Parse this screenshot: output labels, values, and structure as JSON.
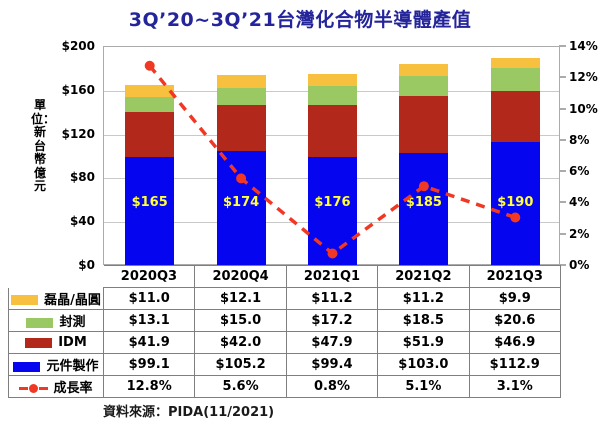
{
  "title": "3Q’20~3Q’21台灣化合物半導體產值",
  "unit_label": "單位：新台幣億元",
  "source": "資料來源：PIDA(11/2021)",
  "chart_data": {
    "type": "bar",
    "subtype": "stacked-bars-with-growth-line",
    "categories": [
      "2020Q3",
      "2020Q4",
      "2021Q1",
      "2021Q2",
      "2021Q3"
    ],
    "series": [
      {
        "name": "磊晶/晶圓",
        "color": "#F7C13F",
        "values": [
          11.0,
          12.1,
          11.2,
          11.2,
          9.9
        ],
        "cells": [
          "$11.0",
          "$12.1",
          "$11.2",
          "$11.2",
          "$9.9"
        ]
      },
      {
        "name": "封測",
        "color": "#9AC862",
        "values": [
          13.1,
          15.0,
          17.2,
          18.5,
          20.6
        ],
        "cells": [
          "$13.1",
          "$15.0",
          "$17.2",
          "$18.5",
          "$20.6"
        ]
      },
      {
        "name": "IDM",
        "color": "#B2291B",
        "values": [
          41.9,
          42.0,
          47.9,
          51.9,
          46.9
        ],
        "cells": [
          "$41.9",
          "$42.0",
          "$47.9",
          "$51.9",
          "$46.9"
        ]
      },
      {
        "name": "元件製作",
        "color": "#0505F0",
        "values": [
          99.1,
          105.2,
          99.4,
          103.0,
          112.9
        ],
        "cells": [
          "$99.1",
          "$105.2",
          "$99.4",
          "$103.0",
          "$112.9"
        ]
      }
    ],
    "line_series": {
      "name": "成長率",
      "color": "#F03824",
      "values": [
        12.8,
        5.6,
        0.8,
        5.1,
        3.1
      ],
      "cells": [
        "12.8%",
        "5.6%",
        "0.8%",
        "5.1%",
        "3.1%"
      ]
    },
    "bar_total_labels": [
      "$165",
      "$174",
      "$176",
      "$185",
      "$190"
    ],
    "bar_total_label_color": "#FFFF3C",
    "left_axis": {
      "min": 0,
      "max": 200,
      "ticks": [
        "$0",
        "$40",
        "$80",
        "$120",
        "$160",
        "$200"
      ]
    },
    "right_axis": {
      "min": 0,
      "max": 14,
      "ticks": [
        "0%",
        "2%",
        "4%",
        "6%",
        "8%",
        "10%",
        "12%",
        "14%"
      ]
    },
    "grid": true,
    "legend_position": "table-left-column",
    "title_color": "#24249B"
  }
}
